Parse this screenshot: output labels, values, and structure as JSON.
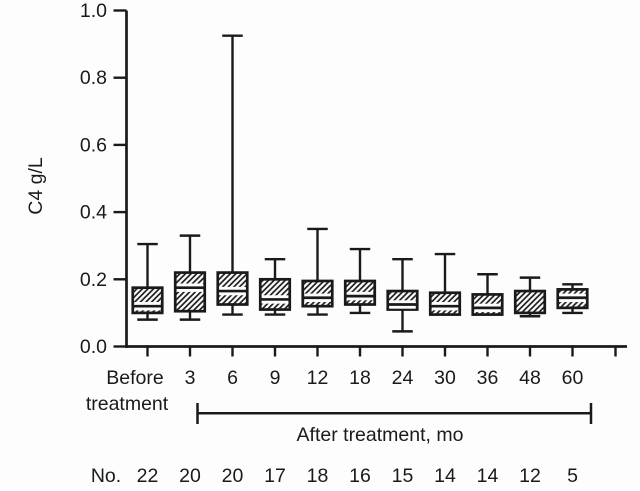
{
  "colors": {
    "ink": "#1a1a1a",
    "paper": "#fdfdfd"
  },
  "figure": {
    "count_row_label": "No."
  },
  "chart_data": {
    "type": "boxplot",
    "title": "",
    "ylabel": "C4 g/L",
    "xlabel_group": "After treatment, mo",
    "ylim": [
      0.0,
      1.0
    ],
    "yticks": [
      "0.0",
      "0.2",
      "0.4",
      "0.6",
      "0.8",
      "1.0"
    ],
    "grid": false,
    "legend": null,
    "categories": [
      "Before treatment",
      "3",
      "6",
      "9",
      "12",
      "18",
      "24",
      "30",
      "36",
      "48",
      "60"
    ],
    "bracket_span": [
      "3",
      "60"
    ],
    "boxes": [
      {
        "label": "Before treatment",
        "n": 22,
        "whisker_low": 0.08,
        "q1": 0.1,
        "median": 0.12,
        "q3": 0.175,
        "whisker_high": 0.305
      },
      {
        "label": "3",
        "n": 20,
        "whisker_low": 0.08,
        "q1": 0.105,
        "median": 0.175,
        "q3": 0.22,
        "whisker_high": 0.33
      },
      {
        "label": "6",
        "n": 20,
        "whisker_low": 0.095,
        "q1": 0.125,
        "median": 0.165,
        "q3": 0.22,
        "whisker_high": 0.925
      },
      {
        "label": "9",
        "n": 17,
        "whisker_low": 0.095,
        "q1": 0.11,
        "median": 0.14,
        "q3": 0.2,
        "whisker_high": 0.26
      },
      {
        "label": "12",
        "n": 18,
        "whisker_low": 0.095,
        "q1": 0.12,
        "median": 0.145,
        "q3": 0.195,
        "whisker_high": 0.35
      },
      {
        "label": "18",
        "n": 16,
        "whisker_low": 0.1,
        "q1": 0.125,
        "median": 0.15,
        "q3": 0.195,
        "whisker_high": 0.29
      },
      {
        "label": "24",
        "n": 15,
        "whisker_low": 0.045,
        "q1": 0.11,
        "median": 0.125,
        "q3": 0.165,
        "whisker_high": 0.26
      },
      {
        "label": "30",
        "n": 14,
        "whisker_low": 0.095,
        "q1": 0.095,
        "median": 0.12,
        "q3": 0.16,
        "whisker_high": 0.275
      },
      {
        "label": "36",
        "n": 14,
        "whisker_low": 0.095,
        "q1": 0.095,
        "median": 0.115,
        "q3": 0.155,
        "whisker_high": 0.215
      },
      {
        "label": "48",
        "n": 12,
        "whisker_low": 0.09,
        "q1": 0.1,
        "median": null,
        "q3": 0.165,
        "whisker_high": 0.205
      },
      {
        "label": "60",
        "n": 5,
        "whisker_low": 0.1,
        "q1": 0.115,
        "median": 0.145,
        "q3": 0.17,
        "whisker_high": 0.185
      }
    ]
  }
}
